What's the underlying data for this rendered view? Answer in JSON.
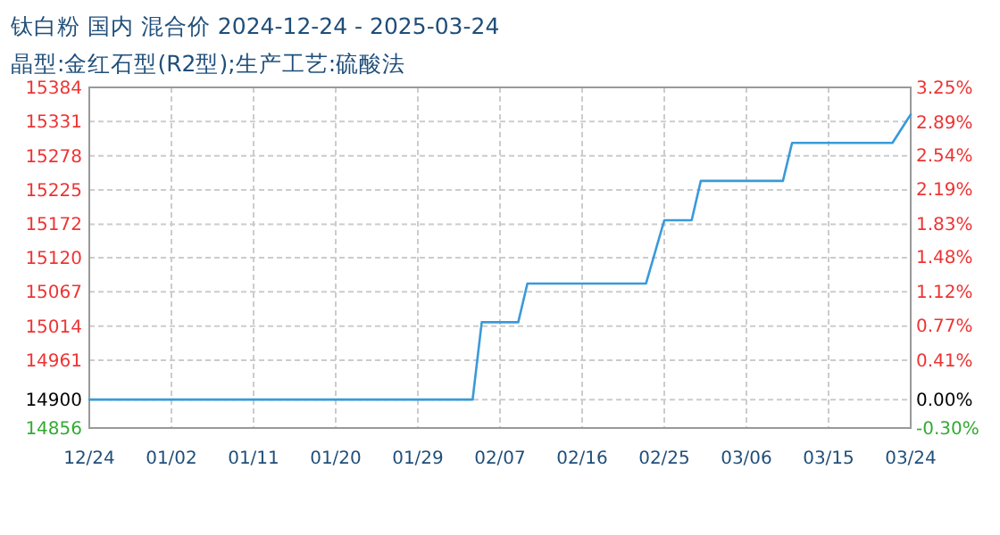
{
  "chart_data": {
    "type": "line",
    "title": "钛白粉 国内 混合价 2024-12-24 - 2025-03-24",
    "subtitle": "晶型:金红石型(R2型);生产工艺:硫酸法",
    "series": [
      {
        "color": "#3a9ad9",
        "x": [
          "2024-12-24",
          "2025-02-04",
          "2025-02-05",
          "2025-02-09",
          "2025-02-10",
          "2025-02-23",
          "2025-02-25",
          "2025-02-28",
          "2025-03-01",
          "2025-03-10",
          "2025-03-11",
          "2025-03-22",
          "2025-03-24"
        ],
        "values": [
          14900,
          14900,
          15020,
          15020,
          15080,
          15080,
          15178,
          15178,
          15239,
          15239,
          15298,
          15298,
          15342
        ]
      }
    ],
    "xlim": [
      "2024-12-24",
      "2025-03-24"
    ],
    "xticks": [
      {
        "value": "2024-12-24",
        "label": "12/24"
      },
      {
        "value": "2025-01-02",
        "label": "01/02"
      },
      {
        "value": "2025-01-11",
        "label": "01/11"
      },
      {
        "value": "2025-01-20",
        "label": "01/20"
      },
      {
        "value": "2025-01-29",
        "label": "01/29"
      },
      {
        "value": "2025-02-07",
        "label": "02/07"
      },
      {
        "value": "2025-02-16",
        "label": "02/16"
      },
      {
        "value": "2025-02-25",
        "label": "02/25"
      },
      {
        "value": "2025-03-06",
        "label": "03/06"
      },
      {
        "value": "2025-03-15",
        "label": "03/15"
      },
      {
        "value": "2025-03-24",
        "label": "03/24"
      }
    ],
    "ylim": [
      14856,
      15384
    ],
    "yticks": [
      14856,
      14900,
      14961,
      15014,
      15067,
      15120,
      15172,
      15225,
      15278,
      15331,
      15384
    ],
    "y2lim": [
      -0.3,
      3.25
    ],
    "y2ticks": [
      {
        "value": -0.3,
        "label": "-0.30%"
      },
      {
        "value": 0,
        "label": "0.00%"
      },
      {
        "value": 0.41,
        "label": "0.41%"
      },
      {
        "value": 0.77,
        "label": "0.77%"
      },
      {
        "value": 1.12,
        "label": "1.12%"
      },
      {
        "value": 1.48,
        "label": "1.48%"
      },
      {
        "value": 1.83,
        "label": "1.83%"
      },
      {
        "value": 2.19,
        "label": "2.19%"
      },
      {
        "value": 2.54,
        "label": "2.54%"
      },
      {
        "value": 2.89,
        "label": "2.89%"
      },
      {
        "value": 3.25,
        "label": "3.25%"
      }
    ],
    "grid": true,
    "line_style": "solid",
    "marker": "none"
  }
}
